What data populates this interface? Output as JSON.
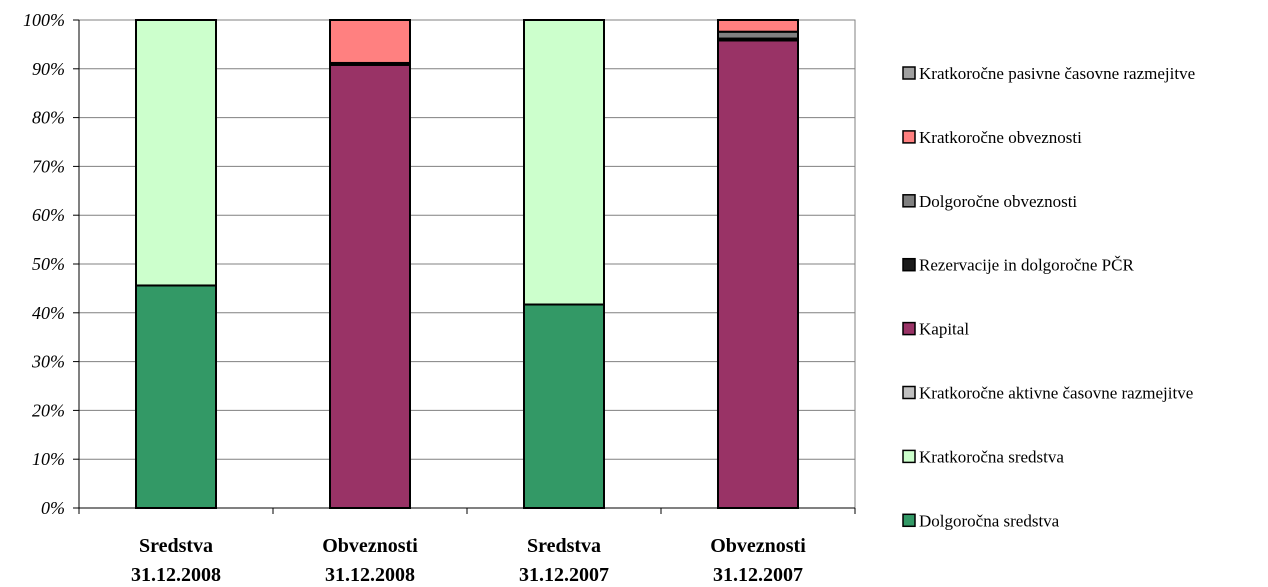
{
  "chart_data": {
    "type": "bar",
    "stacked": true,
    "normalized": true,
    "title": "",
    "xlabel": "",
    "ylabel": "",
    "ylim": [
      0,
      100
    ],
    "y_ticks": [
      "0%",
      "10%",
      "20%",
      "30%",
      "40%",
      "50%",
      "60%",
      "70%",
      "80%",
      "90%",
      "100%"
    ],
    "categories": [
      [
        "Sredstva",
        "31.12.2008"
      ],
      [
        "Obveznosti",
        "31.12.2008"
      ],
      [
        "Sredstva",
        "31.12.2007"
      ],
      [
        "Obveznosti",
        "31.12.2007"
      ]
    ],
    "series": [
      {
        "name": "Dolgoročna sredstva",
        "color": "#339966",
        "values": [
          45.6,
          0,
          41.7,
          0
        ]
      },
      {
        "name": "Kratkoročna sredstva",
        "color": "#ccffcc",
        "values": [
          54.4,
          0,
          58.3,
          0
        ]
      },
      {
        "name": "Kratkoročne aktivne časovne razmejitve",
        "color": "#c0c0c0",
        "values": [
          0,
          0,
          0,
          0
        ]
      },
      {
        "name": "Kapital",
        "color": "#993366",
        "values": [
          0,
          90.8,
          0,
          95.8
        ]
      },
      {
        "name": "Rezervacije in dolgoročne PČR",
        "color": "#1a1a1a",
        "values": [
          0,
          0.4,
          0,
          0.4
        ]
      },
      {
        "name": "Dolgoročne obveznosti",
        "color": "#808080",
        "values": [
          0,
          0,
          0,
          1.4
        ]
      },
      {
        "name": "Kratkoročne obveznosti",
        "color": "#ff8080",
        "values": [
          0,
          8.8,
          0,
          2.4
        ]
      },
      {
        "name": "Kratkoročne pasivne časovne razmejitve",
        "color": "#a0a0a0",
        "values": [
          0,
          0,
          0,
          0
        ]
      }
    ],
    "legend": {
      "position": "right",
      "order": [
        "Kratkoročne pasivne časovne razmejitve",
        "Kratkoročne obveznosti",
        "Dolgoročne obveznosti",
        "Rezervacije in dolgoročne PČR",
        "Kapital",
        "Kratkoročne aktivne časovne razmejitve",
        "Kratkoročna sredstva",
        "Dolgoročna sredstva"
      ]
    },
    "grid": true
  }
}
